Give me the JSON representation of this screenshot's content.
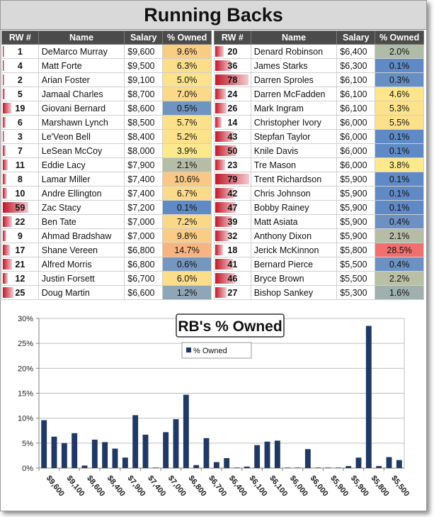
{
  "title": "Running Backs",
  "table": {
    "headers": [
      "RW #",
      "Name",
      "Salary",
      "% Owned"
    ],
    "left": [
      {
        "rw": 1,
        "name": "DeMarco Murray",
        "salary": "$9,600",
        "owned": "9.6%",
        "owned_value": 9.6
      },
      {
        "rw": 4,
        "name": "Matt Forte",
        "salary": "$9,500",
        "owned": "6.3%",
        "owned_value": 6.3
      },
      {
        "rw": 2,
        "name": "Arian Foster",
        "salary": "$9,100",
        "owned": "5.0%",
        "owned_value": 5.0
      },
      {
        "rw": 5,
        "name": "Jamaal Charles",
        "salary": "$8,700",
        "owned": "7.0%",
        "owned_value": 7.0
      },
      {
        "rw": 19,
        "name": "Giovani Bernard",
        "salary": "$8,600",
        "owned": "0.5%",
        "owned_value": 0.5
      },
      {
        "rw": 6,
        "name": "Marshawn Lynch",
        "salary": "$8,500",
        "owned": "5.7%",
        "owned_value": 5.7
      },
      {
        "rw": 3,
        "name": "Le'Veon Bell",
        "salary": "$8,400",
        "owned": "5.2%",
        "owned_value": 5.2
      },
      {
        "rw": 7,
        "name": "LeSean McCoy",
        "salary": "$8,000",
        "owned": "3.9%",
        "owned_value": 3.9
      },
      {
        "rw": 11,
        "name": "Eddie Lacy",
        "salary": "$7,900",
        "owned": "2.1%",
        "owned_value": 2.1
      },
      {
        "rw": 8,
        "name": "Lamar Miller",
        "salary": "$7,400",
        "owned": "10.6%",
        "owned_value": 10.6
      },
      {
        "rw": 10,
        "name": "Andre Ellington",
        "salary": "$7,400",
        "owned": "6.7%",
        "owned_value": 6.7
      },
      {
        "rw": 59,
        "name": "Zac Stacy",
        "salary": "$7,200",
        "owned": "0.1%",
        "owned_value": 0.1
      },
      {
        "rw": 22,
        "name": "Ben Tate",
        "salary": "$7,000",
        "owned": "7.2%",
        "owned_value": 7.2
      },
      {
        "rw": 9,
        "name": "Ahmad Bradshaw",
        "salary": "$7,000",
        "owned": "9.8%",
        "owned_value": 9.8
      },
      {
        "rw": 17,
        "name": "Shane Vereen",
        "salary": "$6,800",
        "owned": "14.7%",
        "owned_value": 14.7
      },
      {
        "rw": 21,
        "name": "Alfred Morris",
        "salary": "$6,800",
        "owned": "0.6%",
        "owned_value": 0.6
      },
      {
        "rw": 12,
        "name": "Justin Forsett",
        "salary": "$6,700",
        "owned": "6.0%",
        "owned_value": 6.0
      },
      {
        "rw": 25,
        "name": "Doug Martin",
        "salary": "$6,600",
        "owned": "1.2%",
        "owned_value": 1.2
      }
    ],
    "right": [
      {
        "rw": 20,
        "name": "Denard Robinson",
        "salary": "$6,400",
        "owned": "2.0%",
        "owned_value": 2.0
      },
      {
        "rw": 36,
        "name": "James Starks",
        "salary": "$6,300",
        "owned": "0.1%",
        "owned_value": 0.1
      },
      {
        "rw": 78,
        "name": "Darren Sproles",
        "salary": "$6,100",
        "owned": "0.3%",
        "owned_value": 0.3
      },
      {
        "rw": 24,
        "name": "Darren McFadden",
        "salary": "$6,100",
        "owned": "4.6%",
        "owned_value": 4.6
      },
      {
        "rw": 26,
        "name": "Mark Ingram",
        "salary": "$6,100",
        "owned": "5.3%",
        "owned_value": 5.3
      },
      {
        "rw": 14,
        "name": "Christopher Ivory",
        "salary": "$6,000",
        "owned": "5.5%",
        "owned_value": 5.5
      },
      {
        "rw": 43,
        "name": "Stepfan Taylor",
        "salary": "$6,000",
        "owned": "0.1%",
        "owned_value": 0.1
      },
      {
        "rw": 50,
        "name": "Knile Davis",
        "salary": "$6,000",
        "owned": "0.1%",
        "owned_value": 0.1
      },
      {
        "rw": 23,
        "name": "Tre Mason",
        "salary": "$6,000",
        "owned": "3.8%",
        "owned_value": 3.8
      },
      {
        "rw": 79,
        "name": "Trent Richardson",
        "salary": "$5,900",
        "owned": "0.1%",
        "owned_value": 0.1
      },
      {
        "rw": 42,
        "name": "Chris Johnson",
        "salary": "$5,900",
        "owned": "0.1%",
        "owned_value": 0.1
      },
      {
        "rw": 47,
        "name": "Bobby Rainey",
        "salary": "$5,900",
        "owned": "0.1%",
        "owned_value": 0.1
      },
      {
        "rw": 39,
        "name": "Matt Asiata",
        "salary": "$5,900",
        "owned": "0.4%",
        "owned_value": 0.4
      },
      {
        "rw": 32,
        "name": "Anthony Dixon",
        "salary": "$5,900",
        "owned": "2.1%",
        "owned_value": 2.1
      },
      {
        "rw": 18,
        "name": "Jerick McKinnon",
        "salary": "$5,800",
        "owned": "28.5%",
        "owned_value": 28.5
      },
      {
        "rw": 41,
        "name": "Bernard Pierce",
        "salary": "$5,500",
        "owned": "0.4%",
        "owned_value": 0.4
      },
      {
        "rw": 46,
        "name": "Bryce Brown",
        "salary": "$5,500",
        "owned": "2.2%",
        "owned_value": 2.2
      },
      {
        "rw": 27,
        "name": "Bishop Sankey",
        "salary": "$5,300",
        "owned": "1.6%",
        "owned_value": 1.6
      }
    ],
    "colors": {
      "low": "#5b87c8",
      "mid": "#fde98c",
      "high": "#f07070"
    }
  },
  "chart_data": {
    "type": "bar",
    "title": "RB's % Owned",
    "legend": "% Owned",
    "legend_position": "top-left",
    "bar_color": "#1f3864",
    "grid": true,
    "ylim": [
      0,
      30
    ],
    "yticks": [
      "0%",
      "5%",
      "10%",
      "15%",
      "20%",
      "25%",
      "30%"
    ],
    "categories": [
      "$9,600",
      "$9,500",
      "$9,100",
      "$8,700",
      "$8,600",
      "$8,500",
      "$8,400",
      "$8,000",
      "$7,900",
      "$7,400",
      "$7,400",
      "$7,200",
      "$7,000",
      "$7,000",
      "$6,800",
      "$6,800",
      "$6,700",
      "$6,600",
      "$6,400",
      "$6,300",
      "$6,100",
      "$6,100",
      "$6,100",
      "$6,000",
      "$6,000",
      "$6,000",
      "$6,000",
      "$5,900",
      "$5,900",
      "$5,900",
      "$5,900",
      "$5,900",
      "$5,800",
      "$5,500",
      "$5,500",
      "$5,300"
    ],
    "tick_labels": [
      "$9,600",
      "$9,100",
      "$8,600",
      "$8,400",
      "$7,900",
      "$7,400",
      "$7,000",
      "$6,800",
      "$6,700",
      "$6,400",
      "$6,100",
      "$6,100",
      "$6,000",
      "$6,000",
      "$5,900",
      "$5,900",
      "$5,800",
      "$5,500"
    ],
    "series": [
      {
        "name": "% Owned",
        "values": [
          9.6,
          6.3,
          5.0,
          7.0,
          0.5,
          5.7,
          5.2,
          3.9,
          2.1,
          10.6,
          6.7,
          0.1,
          7.2,
          9.8,
          14.7,
          0.6,
          6.0,
          1.2,
          2.0,
          0.1,
          0.3,
          4.6,
          5.3,
          5.5,
          0.1,
          0.1,
          3.8,
          0.1,
          0.1,
          0.1,
          0.4,
          2.1,
          28.5,
          0.4,
          2.2,
          1.6
        ]
      }
    ]
  }
}
